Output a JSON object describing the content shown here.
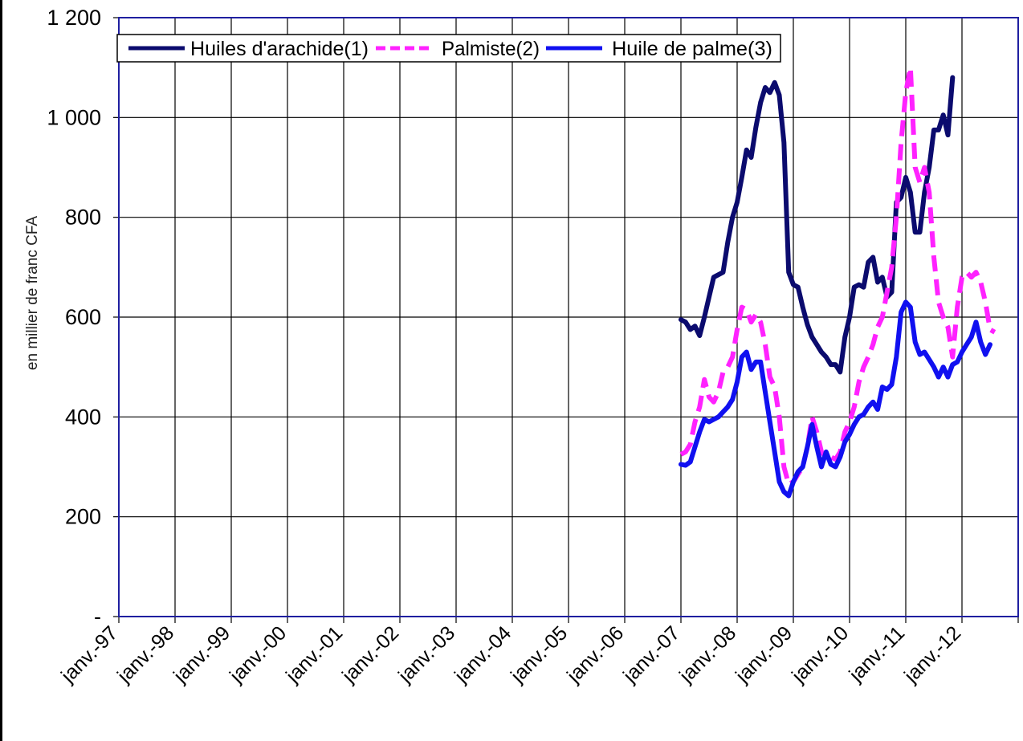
{
  "chart_data": {
    "type": "line",
    "title": "",
    "xlabel": "",
    "ylabel": "en millier de franc CFA",
    "ylim": [
      0,
      1200
    ],
    "y_ticks": [
      {
        "value": 0,
        "label": "-"
      },
      {
        "value": 200,
        "label": "200"
      },
      {
        "value": 400,
        "label": "400"
      },
      {
        "value": 600,
        "label": "600"
      },
      {
        "value": 800,
        "label": "800"
      },
      {
        "value": 1000,
        "label": "1 000"
      },
      {
        "value": 1200,
        "label": "1 200"
      }
    ],
    "x_tick_labels": [
      "janv.-97",
      "janv.-98",
      "janv.-99",
      "janv.-00",
      "janv.-01",
      "janv.-02",
      "janv.-03",
      "janv.-04",
      "janv.-05",
      "janv.-06",
      "janv.-07",
      "janv.-08",
      "janv.-09",
      "janv.-10",
      "janv.-11",
      "janv.-12"
    ],
    "x_range": [
      "1997-01",
      "2013-01"
    ],
    "grid": true,
    "legend": "top-left",
    "colors": {
      "plot_border": "#1f1fa0",
      "grid": "#000000"
    },
    "series": [
      {
        "name": "Huiles d'arachide(1)",
        "color": "#0b0b6e",
        "style": "solid",
        "points": [
          [
            "2007-01",
            595
          ],
          [
            "2007-02",
            590
          ],
          [
            "2007-03",
            575
          ],
          [
            "2007-04",
            582
          ],
          [
            "2007-05",
            563
          ],
          [
            "2007-06",
            600
          ],
          [
            "2007-07",
            640
          ],
          [
            "2007-08",
            680
          ],
          [
            "2007-09",
            685
          ],
          [
            "2007-10",
            690
          ],
          [
            "2007-11",
            750
          ],
          [
            "2007-12",
            800
          ],
          [
            "2008-01",
            830
          ],
          [
            "2008-02",
            880
          ],
          [
            "2008-03",
            935
          ],
          [
            "2008-04",
            920
          ],
          [
            "2008-05",
            980
          ],
          [
            "2008-06",
            1030
          ],
          [
            "2008-07",
            1060
          ],
          [
            "2008-08",
            1050
          ],
          [
            "2008-09",
            1070
          ],
          [
            "2008-10",
            1045
          ],
          [
            "2008-11",
            950
          ],
          [
            "2008-12",
            690
          ],
          [
            "2009-01",
            665
          ],
          [
            "2009-02",
            660
          ],
          [
            "2009-03",
            620
          ],
          [
            "2009-04",
            585
          ],
          [
            "2009-05",
            560
          ],
          [
            "2009-06",
            545
          ],
          [
            "2009-07",
            530
          ],
          [
            "2009-08",
            520
          ],
          [
            "2009-09",
            505
          ],
          [
            "2009-10",
            505
          ],
          [
            "2009-11",
            490
          ],
          [
            "2009-12",
            560
          ],
          [
            "2010-01",
            600
          ],
          [
            "2010-02",
            660
          ],
          [
            "2010-03",
            665
          ],
          [
            "2010-04",
            660
          ],
          [
            "2010-05",
            710
          ],
          [
            "2010-06",
            720
          ],
          [
            "2010-07",
            670
          ],
          [
            "2010-08",
            680
          ],
          [
            "2010-09",
            640
          ],
          [
            "2010-10",
            650
          ],
          [
            "2010-11",
            830
          ],
          [
            "2010-12",
            840
          ],
          [
            "2011-01",
            880
          ],
          [
            "2011-02",
            850
          ],
          [
            "2011-03",
            770
          ],
          [
            "2011-04",
            770
          ],
          [
            "2011-05",
            850
          ],
          [
            "2011-06",
            900
          ],
          [
            "2011-07",
            975
          ],
          [
            "2011-08",
            975
          ],
          [
            "2011-09",
            1005
          ],
          [
            "2011-10",
            965
          ],
          [
            "2011-11",
            1080
          ]
        ]
      },
      {
        "name": "Palmiste(2)",
        "color": "#ff22ff",
        "style": "dashed",
        "points": [
          [
            "2007-01",
            325
          ],
          [
            "2007-02",
            330
          ],
          [
            "2007-03",
            345
          ],
          [
            "2007-04",
            390
          ],
          [
            "2007-05",
            420
          ],
          [
            "2007-06",
            475
          ],
          [
            "2007-07",
            440
          ],
          [
            "2007-08",
            430
          ],
          [
            "2007-09",
            450
          ],
          [
            "2007-10",
            490
          ],
          [
            "2007-11",
            500
          ],
          [
            "2007-12",
            520
          ],
          [
            "2008-01",
            575
          ],
          [
            "2008-02",
            620
          ],
          [
            "2008-03",
            615
          ],
          [
            "2008-04",
            590
          ],
          [
            "2008-05",
            605
          ],
          [
            "2008-06",
            590
          ],
          [
            "2008-07",
            545
          ],
          [
            "2008-08",
            480
          ],
          [
            "2008-09",
            460
          ],
          [
            "2008-10",
            400
          ],
          [
            "2008-11",
            300
          ],
          [
            "2008-12",
            265
          ],
          [
            "2009-01",
            270
          ],
          [
            "2009-02",
            285
          ],
          [
            "2009-03",
            300
          ],
          [
            "2009-04",
            340
          ],
          [
            "2009-05",
            400
          ],
          [
            "2009-06",
            370
          ],
          [
            "2009-07",
            330
          ],
          [
            "2009-08",
            320
          ],
          [
            "2009-09",
            320
          ],
          [
            "2009-10",
            315
          ],
          [
            "2009-11",
            330
          ],
          [
            "2009-12",
            370
          ],
          [
            "2010-01",
            390
          ],
          [
            "2010-02",
            420
          ],
          [
            "2010-03",
            470
          ],
          [
            "2010-04",
            500
          ],
          [
            "2010-05",
            520
          ],
          [
            "2010-06",
            545
          ],
          [
            "2010-07",
            580
          ],
          [
            "2010-08",
            600
          ],
          [
            "2010-09",
            650
          ],
          [
            "2010-10",
            700
          ],
          [
            "2010-11",
            800
          ],
          [
            "2010-12",
            950
          ],
          [
            "2011-01",
            1050
          ],
          [
            "2011-02",
            1100
          ],
          [
            "2011-03",
            900
          ],
          [
            "2011-04",
            870
          ],
          [
            "2011-05",
            900
          ],
          [
            "2011-06",
            850
          ],
          [
            "2011-07",
            720
          ],
          [
            "2011-08",
            630
          ],
          [
            "2011-09",
            600
          ],
          [
            "2011-10",
            580
          ],
          [
            "2011-11",
            520
          ],
          [
            "2011-12",
            620
          ],
          [
            "2012-01",
            680
          ],
          [
            "2012-02",
            690
          ],
          [
            "2012-03",
            680
          ],
          [
            "2012-04",
            690
          ],
          [
            "2012-05",
            670
          ],
          [
            "2012-06",
            630
          ],
          [
            "2012-07",
            575
          ],
          [
            "2012-08",
            570
          ]
        ]
      },
      {
        "name": "Huile de palme(3)",
        "color": "#1010f0",
        "style": "solid",
        "points": [
          [
            "2007-01",
            305
          ],
          [
            "2007-02",
            303
          ],
          [
            "2007-03",
            310
          ],
          [
            "2007-04",
            340
          ],
          [
            "2007-05",
            370
          ],
          [
            "2007-06",
            395
          ],
          [
            "2007-07",
            390
          ],
          [
            "2007-08",
            395
          ],
          [
            "2007-09",
            400
          ],
          [
            "2007-10",
            410
          ],
          [
            "2007-11",
            420
          ],
          [
            "2007-12",
            435
          ],
          [
            "2008-01",
            470
          ],
          [
            "2008-02",
            520
          ],
          [
            "2008-03",
            530
          ],
          [
            "2008-04",
            495
          ],
          [
            "2008-05",
            510
          ],
          [
            "2008-06",
            510
          ],
          [
            "2008-07",
            450
          ],
          [
            "2008-08",
            390
          ],
          [
            "2008-09",
            330
          ],
          [
            "2008-10",
            270
          ],
          [
            "2008-11",
            250
          ],
          [
            "2008-12",
            242
          ],
          [
            "2009-01",
            270
          ],
          [
            "2009-02",
            290
          ],
          [
            "2009-03",
            300
          ],
          [
            "2009-04",
            340
          ],
          [
            "2009-05",
            385
          ],
          [
            "2009-06",
            340
          ],
          [
            "2009-07",
            300
          ],
          [
            "2009-08",
            330
          ],
          [
            "2009-09",
            305
          ],
          [
            "2009-10",
            300
          ],
          [
            "2009-11",
            320
          ],
          [
            "2009-12",
            350
          ],
          [
            "2010-01",
            365
          ],
          [
            "2010-02",
            385
          ],
          [
            "2010-03",
            400
          ],
          [
            "2010-04",
            405
          ],
          [
            "2010-05",
            420
          ],
          [
            "2010-06",
            430
          ],
          [
            "2010-07",
            415
          ],
          [
            "2010-08",
            460
          ],
          [
            "2010-09",
            455
          ],
          [
            "2010-10",
            465
          ],
          [
            "2010-11",
            520
          ],
          [
            "2010-12",
            610
          ],
          [
            "2011-01",
            630
          ],
          [
            "2011-02",
            620
          ],
          [
            "2011-03",
            550
          ],
          [
            "2011-04",
            525
          ],
          [
            "2011-05",
            530
          ],
          [
            "2011-06",
            515
          ],
          [
            "2011-07",
            500
          ],
          [
            "2011-08",
            480
          ],
          [
            "2011-09",
            500
          ],
          [
            "2011-10",
            480
          ],
          [
            "2011-11",
            505
          ],
          [
            "2011-12",
            510
          ],
          [
            "2012-01",
            530
          ],
          [
            "2012-02",
            545
          ],
          [
            "2012-03",
            560
          ],
          [
            "2012-04",
            590
          ],
          [
            "2012-05",
            550
          ],
          [
            "2012-06",
            525
          ],
          [
            "2012-07",
            545
          ]
        ]
      }
    ]
  }
}
